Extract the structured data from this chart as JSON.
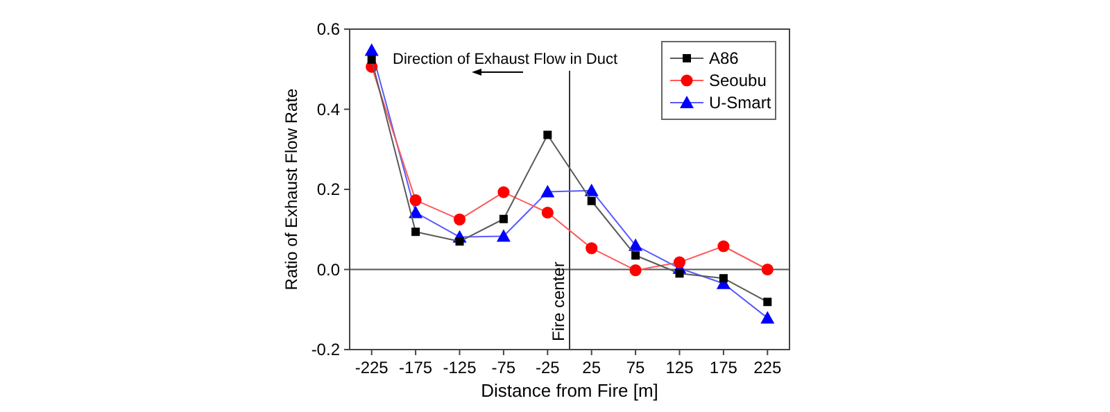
{
  "chart_data": {
    "type": "line",
    "xlabel": "Distance from Fire [m]",
    "ylabel": "Ratio of Exhaust Flow Rate",
    "x": [
      -225,
      -175,
      -125,
      -75,
      -25,
      25,
      75,
      125,
      175,
      225
    ],
    "xlim": [
      -250,
      250
    ],
    "xticks": [
      -225,
      -175,
      -125,
      -75,
      -25,
      25,
      75,
      125,
      175,
      225
    ],
    "ylim": [
      -0.2,
      0.6
    ],
    "yticks": [
      {
        "value": -0.2,
        "label": "-0.2"
      },
      {
        "value": 0,
        "label": "0.0"
      },
      {
        "value": 0.2,
        "label": "0.2"
      },
      {
        "value": 0.4,
        "label": "0.4"
      },
      {
        "value": 0.6,
        "label": "0.6"
      }
    ],
    "series": [
      {
        "name": "A86",
        "color": "#000000",
        "marker": "square",
        "values": [
          0.524,
          0.094,
          0.07,
          0.126,
          0.336,
          0.171,
          0.035,
          -0.01,
          -0.022,
          -0.081
        ]
      },
      {
        "name": "Seoubu",
        "color": "#ff0000",
        "marker": "circle",
        "values": [
          0.506,
          0.173,
          0.125,
          0.193,
          0.142,
          0.053,
          -0.002,
          0.018,
          0.058,
          0
        ]
      },
      {
        "name": "U-Smart",
        "color": "#0000ff",
        "marker": "triangle",
        "values": [
          0.547,
          0.142,
          0.081,
          0.083,
          0.194,
          0.197,
          0.06,
          0.003,
          -0.035,
          -0.121
        ]
      }
    ],
    "ref_lines": [
      {
        "axis": "y",
        "value": 0,
        "color": "#555555"
      },
      {
        "axis": "x",
        "value": 0,
        "label": "Fire center",
        "color": "#333333"
      }
    ],
    "annotations": [
      "Direction of Exhaust Flow in Duct"
    ],
    "legend": "top right",
    "grid": false
  }
}
